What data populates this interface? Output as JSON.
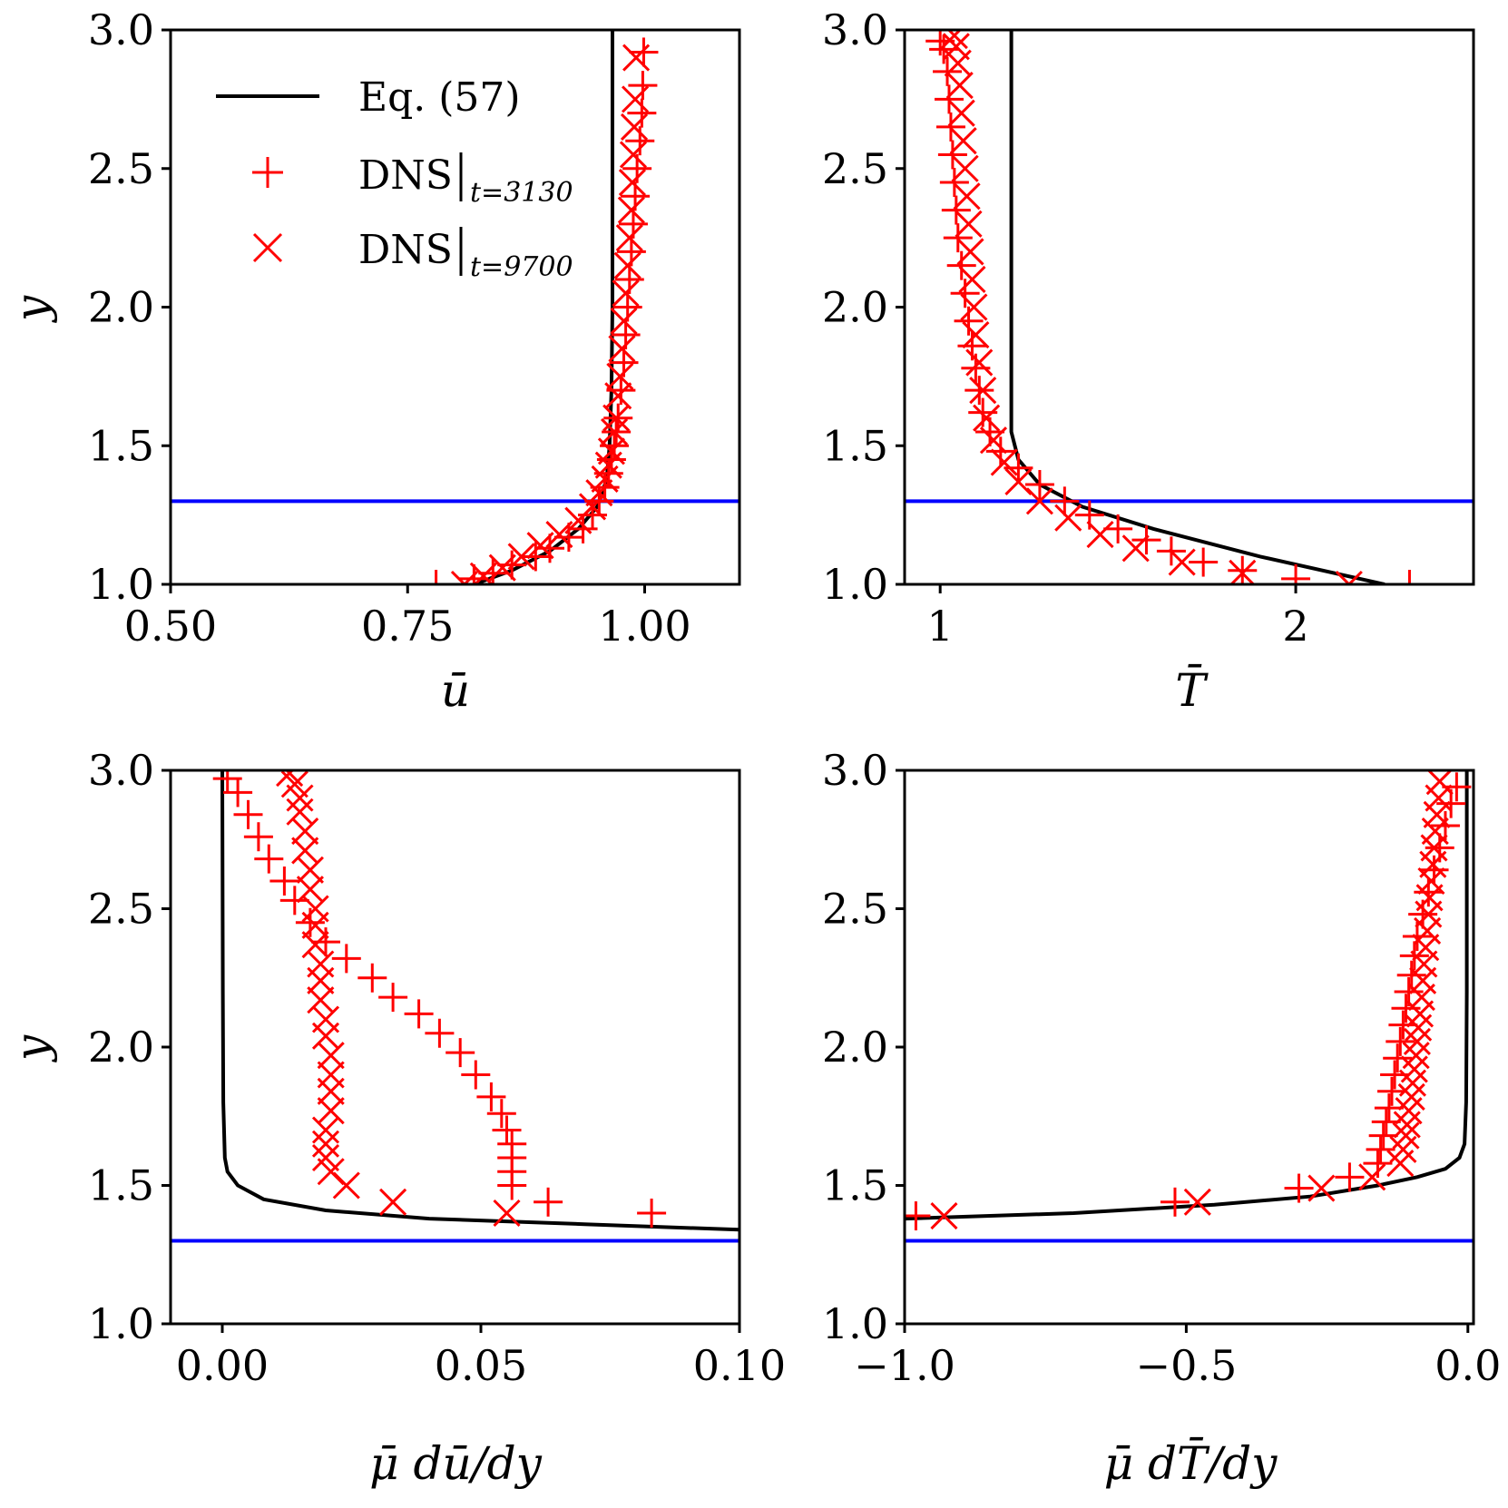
{
  "figure_title": "",
  "legend": {
    "entries": [
      {
        "label": "Eq. (57)",
        "marker": "line"
      },
      {
        "label": "DNS",
        "subscript": "t=3130",
        "marker": "plus"
      },
      {
        "label": "DNS",
        "subscript": "t=9700",
        "marker": "x"
      }
    ]
  },
  "colors": {
    "equation": "#000000",
    "dns": "#ff0000",
    "reference_line": "#0000ff"
  },
  "chart_data": [
    {
      "type": "line",
      "id": "u",
      "xlabel": "ū",
      "ylabel": "y",
      "xlim": [
        0.5,
        1.1
      ],
      "ylim": [
        1.0,
        3.0
      ],
      "xticks": [
        0.5,
        0.75,
        1.0
      ],
      "xtick_labels": [
        "0.50",
        "0.75",
        "1.00"
      ],
      "yticks": [
        1.0,
        1.5,
        2.0,
        2.5,
        3.0
      ],
      "ytick_labels": [
        "1.0",
        "1.5",
        "2.0",
        "2.5",
        "3.0"
      ],
      "reference_y": 1.3,
      "series": [
        {
          "name": "Eq. (57)",
          "style": "line",
          "x": [
            0.82,
            0.86,
            0.9,
            0.93,
            0.95,
            0.96,
            0.963,
            0.965,
            0.966,
            0.966,
            0.966
          ],
          "y": [
            1.0,
            1.05,
            1.12,
            1.2,
            1.28,
            1.38,
            1.5,
            1.7,
            2.0,
            2.5,
            3.0
          ]
        },
        {
          "name": "DNS t=3130",
          "style": "plus",
          "x": [
            0.78,
            0.82,
            0.84,
            0.86,
            0.885,
            0.9,
            0.92,
            0.935,
            0.945,
            0.952,
            0.958,
            0.962,
            0.965,
            0.968,
            0.97,
            0.972,
            0.975,
            0.978,
            0.98,
            0.982,
            0.984,
            0.986,
            0.988,
            0.99,
            0.992,
            0.995,
            0.997,
            0.998,
            0.999
          ],
          "y": [
            1.0,
            1.02,
            1.04,
            1.07,
            1.1,
            1.13,
            1.17,
            1.2,
            1.25,
            1.3,
            1.35,
            1.4,
            1.45,
            1.5,
            1.55,
            1.6,
            1.7,
            1.8,
            1.9,
            2.0,
            2.1,
            2.2,
            2.3,
            2.4,
            2.5,
            2.6,
            2.7,
            2.8,
            2.92
          ]
        },
        {
          "name": "DNS t=9700",
          "style": "x",
          "x": [
            0.81,
            0.83,
            0.85,
            0.87,
            0.89,
            0.91,
            0.93,
            0.945,
            0.952,
            0.958,
            0.962,
            0.965,
            0.968,
            0.97,
            0.972,
            0.974,
            0.976,
            0.978,
            0.98,
            0.982,
            0.984,
            0.986,
            0.987,
            0.988,
            0.989,
            0.99,
            0.991
          ],
          "y": [
            1.0,
            1.03,
            1.06,
            1.1,
            1.14,
            1.18,
            1.23,
            1.28,
            1.33,
            1.38,
            1.43,
            1.48,
            1.55,
            1.6,
            1.68,
            1.75,
            1.85,
            1.95,
            2.05,
            2.15,
            2.25,
            2.35,
            2.45,
            2.55,
            2.65,
            2.75,
            2.9
          ]
        }
      ]
    },
    {
      "type": "line",
      "id": "T",
      "xlabel": "T̄",
      "ylabel": "",
      "xlim": [
        0.9,
        2.5
      ],
      "ylim": [
        1.0,
        3.0
      ],
      "xticks": [
        1,
        2
      ],
      "xtick_labels": [
        "1",
        "2"
      ],
      "yticks": [
        1.0,
        1.5,
        2.0,
        2.5,
        3.0
      ],
      "ytick_labels": [
        "1.0",
        "1.5",
        "2.0",
        "2.5",
        "3.0"
      ],
      "reference_y": 1.3,
      "series": [
        {
          "name": "Eq. (57)",
          "style": "line",
          "x": [
            2.25,
            1.9,
            1.6,
            1.4,
            1.28,
            1.22,
            1.2,
            1.2,
            1.2
          ],
          "y": [
            1.0,
            1.1,
            1.2,
            1.28,
            1.36,
            1.45,
            1.55,
            2.0,
            3.0
          ]
        },
        {
          "name": "DNS t=3130",
          "style": "plus",
          "x": [
            2.32,
            2.0,
            1.85,
            1.74,
            1.65,
            1.58,
            1.5,
            1.42,
            1.35,
            1.28,
            1.22,
            1.17,
            1.14,
            1.12,
            1.11,
            1.1,
            1.09,
            1.08,
            1.07,
            1.06,
            1.05,
            1.045,
            1.04,
            1.035,
            1.03,
            1.025,
            1.02,
            1.01,
            1.0
          ],
          "y": [
            1.0,
            1.02,
            1.05,
            1.08,
            1.12,
            1.16,
            1.2,
            1.25,
            1.3,
            1.36,
            1.42,
            1.48,
            1.55,
            1.62,
            1.7,
            1.78,
            1.86,
            1.95,
            2.05,
            2.15,
            2.25,
            2.35,
            2.45,
            2.55,
            2.65,
            2.75,
            2.85,
            2.93,
            2.96
          ]
        },
        {
          "name": "DNS t=9700",
          "style": "x",
          "x": [
            2.15,
            1.85,
            1.68,
            1.55,
            1.45,
            1.36,
            1.28,
            1.22,
            1.18,
            1.15,
            1.13,
            1.12,
            1.11,
            1.1,
            1.095,
            1.09,
            1.085,
            1.08,
            1.075,
            1.07,
            1.065,
            1.06,
            1.055,
            1.05,
            1.045,
            1.04
          ],
          "y": [
            1.0,
            1.04,
            1.08,
            1.13,
            1.18,
            1.24,
            1.3,
            1.37,
            1.44,
            1.52,
            1.6,
            1.7,
            1.8,
            1.9,
            2.0,
            2.1,
            2.2,
            2.3,
            2.4,
            2.5,
            2.6,
            2.7,
            2.8,
            2.88,
            2.94,
            2.98
          ]
        }
      ]
    },
    {
      "type": "line",
      "id": "mu_dudy",
      "xlabel": "μ̄ dū/dy",
      "ylabel": "y",
      "xlim": [
        -0.01,
        0.1
      ],
      "ylim": [
        1.0,
        3.0
      ],
      "xticks": [
        0.0,
        0.05,
        0.1
      ],
      "xtick_labels": [
        "0.00",
        "0.05",
        "0.10"
      ],
      "yticks": [
        1.0,
        1.5,
        2.0,
        2.5,
        3.0
      ],
      "ytick_labels": [
        "1.0",
        "1.5",
        "2.0",
        "2.5",
        "3.0"
      ],
      "reference_y": 1.3,
      "series": [
        {
          "name": "Eq. (57)",
          "style": "line",
          "x": [
            0.1,
            0.07,
            0.04,
            0.02,
            0.008,
            0.003,
            0.001,
            0.0005,
            0.0002,
            0.0001,
            0.0
          ],
          "y": [
            1.34,
            1.36,
            1.38,
            1.41,
            1.45,
            1.5,
            1.55,
            1.6,
            1.8,
            2.2,
            3.0
          ]
        },
        {
          "name": "DNS t=3130",
          "style": "plus",
          "x": [
            0.083,
            0.063,
            0.056,
            0.056,
            0.056,
            0.056,
            0.055,
            0.054,
            0.052,
            0.049,
            0.046,
            0.042,
            0.038,
            0.033,
            0.029,
            0.024,
            0.02,
            0.017,
            0.014,
            0.012,
            0.009,
            0.007,
            0.005,
            0.003,
            0.001
          ],
          "y": [
            1.4,
            1.44,
            1.5,
            1.55,
            1.6,
            1.65,
            1.7,
            1.76,
            1.82,
            1.9,
            1.98,
            2.05,
            2.12,
            2.18,
            2.25,
            2.32,
            2.38,
            2.45,
            2.53,
            2.6,
            2.68,
            2.76,
            2.84,
            2.92,
            2.97
          ]
        },
        {
          "name": "DNS t=9700",
          "style": "x",
          "x": [
            0.055,
            0.033,
            0.024,
            0.021,
            0.02,
            0.02,
            0.02,
            0.021,
            0.021,
            0.021,
            0.021,
            0.02,
            0.02,
            0.019,
            0.019,
            0.019,
            0.018,
            0.018,
            0.018,
            0.017,
            0.017,
            0.016,
            0.016,
            0.015,
            0.015,
            0.014,
            0.013
          ],
          "y": [
            1.4,
            1.44,
            1.5,
            1.55,
            1.6,
            1.65,
            1.7,
            1.77,
            1.84,
            1.9,
            1.97,
            2.04,
            2.1,
            2.17,
            2.24,
            2.3,
            2.37,
            2.44,
            2.5,
            2.57,
            2.64,
            2.71,
            2.78,
            2.85,
            2.9,
            2.95,
            2.99
          ]
        }
      ]
    },
    {
      "type": "line",
      "id": "mu_dTdy",
      "xlabel": "μ̄ dT̄/dy",
      "ylabel": "",
      "xlim": [
        -1.0,
        0.01
      ],
      "ylim": [
        1.0,
        3.0
      ],
      "xticks": [
        -1.0,
        -0.5,
        0.0
      ],
      "xtick_labels": [
        "−1.0",
        "−0.5",
        "0.0"
      ],
      "yticks": [
        1.0,
        1.5,
        2.0,
        2.5,
        3.0
      ],
      "ytick_labels": [
        "1.0",
        "1.5",
        "2.0",
        "2.5",
        "3.0"
      ],
      "reference_y": 1.3,
      "series": [
        {
          "name": "Eq. (57)",
          "style": "line",
          "x": [
            -1.0,
            -0.7,
            -0.45,
            -0.28,
            -0.16,
            -0.09,
            -0.04,
            -0.015,
            -0.006,
            -0.003,
            -0.002,
            -0.002
          ],
          "y": [
            1.38,
            1.4,
            1.43,
            1.46,
            1.5,
            1.53,
            1.56,
            1.6,
            1.65,
            1.8,
            2.2,
            3.0
          ]
        },
        {
          "name": "DNS t=3130",
          "style": "plus",
          "x": [
            -0.98,
            -0.52,
            -0.3,
            -0.21,
            -0.16,
            -0.155,
            -0.15,
            -0.145,
            -0.14,
            -0.135,
            -0.13,
            -0.125,
            -0.12,
            -0.115,
            -0.11,
            -0.105,
            -0.1,
            -0.095,
            -0.09,
            -0.08,
            -0.07,
            -0.06,
            -0.05,
            -0.04,
            -0.03,
            -0.02
          ],
          "y": [
            1.39,
            1.44,
            1.49,
            1.53,
            1.58,
            1.63,
            1.68,
            1.73,
            1.78,
            1.84,
            1.9,
            1.96,
            2.02,
            2.08,
            2.14,
            2.2,
            2.26,
            2.33,
            2.4,
            2.48,
            2.56,
            2.64,
            2.72,
            2.8,
            2.88,
            2.94
          ]
        },
        {
          "name": "DNS t=9700",
          "style": "x",
          "x": [
            -0.93,
            -0.48,
            -0.26,
            -0.17,
            -0.12,
            -0.115,
            -0.11,
            -0.108,
            -0.105,
            -0.1,
            -0.098,
            -0.095,
            -0.092,
            -0.09,
            -0.088,
            -0.085,
            -0.082,
            -0.08,
            -0.078,
            -0.075,
            -0.072,
            -0.07,
            -0.068,
            -0.065,
            -0.062,
            -0.06,
            -0.058,
            -0.055,
            -0.052,
            -0.05
          ],
          "y": [
            1.39,
            1.44,
            1.49,
            1.53,
            1.58,
            1.63,
            1.68,
            1.72,
            1.77,
            1.82,
            1.87,
            1.92,
            1.97,
            2.02,
            2.07,
            2.12,
            2.18,
            2.24,
            2.3,
            2.36,
            2.42,
            2.48,
            2.54,
            2.6,
            2.66,
            2.72,
            2.78,
            2.84,
            2.9,
            2.96
          ]
        }
      ]
    }
  ]
}
